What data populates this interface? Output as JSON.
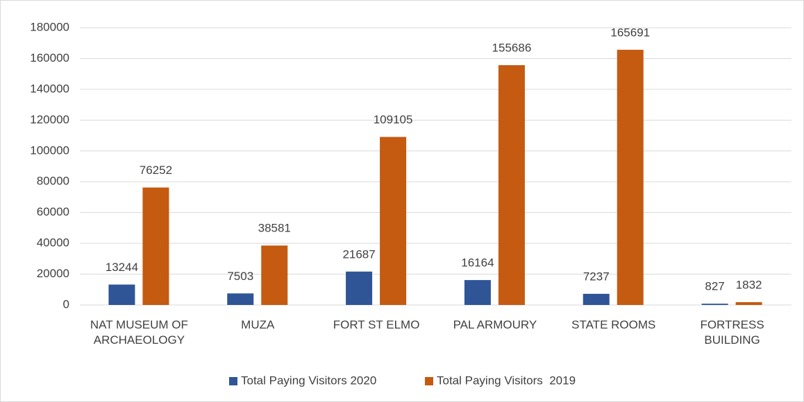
{
  "chart_data": {
    "type": "bar",
    "categories": [
      "NAT MUSEUM OF ARCHAEOLOGY",
      "MUZA",
      "FORT ST ELMO",
      "PAL ARMOURY",
      "STATE ROOMS",
      "FORTRESS BUILDING"
    ],
    "series": [
      {
        "name": "Total Paying Visitors 2020",
        "color": "#2f5597",
        "values": [
          13244,
          7503,
          21687,
          16164,
          7237,
          827
        ]
      },
      {
        "name": "Total Paying Visitors  2019",
        "color": "#c55a11",
        "values": [
          76252,
          38581,
          109105,
          155686,
          165691,
          1832
        ]
      }
    ],
    "ylim": [
      0,
      180000
    ],
    "yticks": [
      0,
      20000,
      40000,
      60000,
      80000,
      100000,
      120000,
      140000,
      160000,
      180000
    ],
    "grid": true,
    "legend": "bottom"
  }
}
